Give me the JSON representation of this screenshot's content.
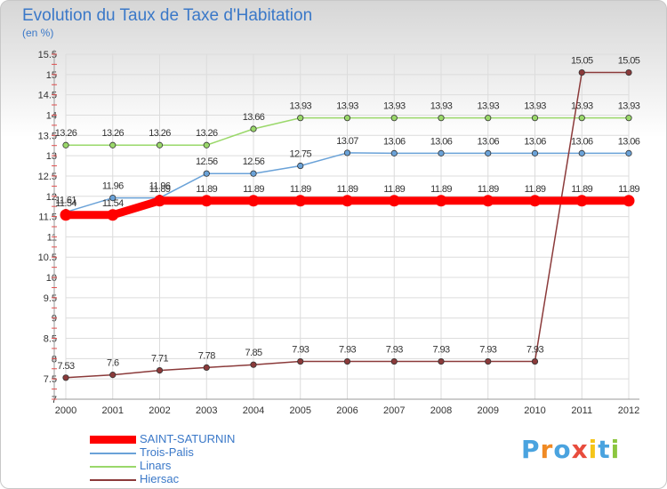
{
  "header": {
    "title": "Evolution du Taux de Taxe d'Habitation",
    "subtitle": "(en %)"
  },
  "brand": {
    "text": "Proxiti",
    "colors": [
      "#4aa3df",
      "#f08a24",
      "#4aa3df",
      "#e84c3d",
      "#f5c518",
      "#4aa3df",
      "#8cc63f"
    ]
  },
  "chart_data": {
    "type": "line",
    "title": "Evolution du Taux de Taxe d'Habitation",
    "subtitle": "(en %)",
    "xlabel": "",
    "ylabel": "",
    "x": [
      "2000",
      "2001",
      "2002",
      "2003",
      "2004",
      "2005",
      "2006",
      "2007",
      "2008",
      "2009",
      "2010",
      "2011",
      "2012"
    ],
    "ylim": [
      7,
      15.5
    ],
    "yticks": [
      "7",
      "7.5",
      "8",
      "8.5",
      "9",
      "9.5",
      "10",
      "10.5",
      "11",
      "11.5",
      "12",
      "12.5",
      "13",
      "13.5",
      "14",
      "14.5",
      "15",
      "15.5"
    ],
    "grid": true,
    "legend_position": "bottom-left",
    "series": [
      {
        "name": "SAINT-SATURNIN",
        "color": "#ff0000",
        "bold": true,
        "values": [
          11.54,
          11.54,
          11.89,
          11.89,
          11.89,
          11.89,
          11.89,
          11.89,
          11.89,
          11.89,
          11.89,
          11.89,
          11.89
        ],
        "labels": [
          "11.54",
          "11.54",
          "11.89",
          "11.89",
          "11.89",
          "11.89",
          "11.89",
          "11.89",
          "11.89",
          "11.89",
          "11.89",
          "11.89",
          "11.89"
        ]
      },
      {
        "name": "Trois-Palis",
        "color": "#6aa2d8",
        "values": [
          11.61,
          11.96,
          11.96,
          12.56,
          12.56,
          12.75,
          13.07,
          13.06,
          13.06,
          13.06,
          13.06,
          13.06,
          13.06
        ],
        "labels": [
          "11.61",
          "11.96",
          "11.96",
          "12.56",
          "12.56",
          "12.75",
          "13.07",
          "13.06",
          "13.06",
          "13.06",
          "13.06",
          "13.06",
          "13.06"
        ]
      },
      {
        "name": "Linars",
        "color": "#9ad86a",
        "values": [
          13.26,
          13.26,
          13.26,
          13.26,
          13.66,
          13.93,
          13.93,
          13.93,
          13.93,
          13.93,
          13.93,
          13.93,
          13.93
        ],
        "labels": [
          "13.26",
          "13.26",
          "13.26",
          "13.26",
          "13.66",
          "13.93",
          "13.93",
          "13.93",
          "13.93",
          "13.93",
          "13.93",
          "13.93",
          "13.93"
        ]
      },
      {
        "name": "Hiersac",
        "color": "#8b3a3a",
        "values": [
          7.53,
          7.6,
          7.71,
          7.78,
          7.85,
          7.93,
          7.93,
          7.93,
          7.93,
          7.93,
          7.93,
          15.05,
          15.05
        ],
        "labels": [
          "7.53",
          "7.6",
          "7.71",
          "7.78",
          "7.85",
          "7.93",
          "7.93",
          "7.93",
          "7.93",
          "7.93",
          "7.93",
          "15.05",
          "15.05"
        ]
      }
    ]
  }
}
